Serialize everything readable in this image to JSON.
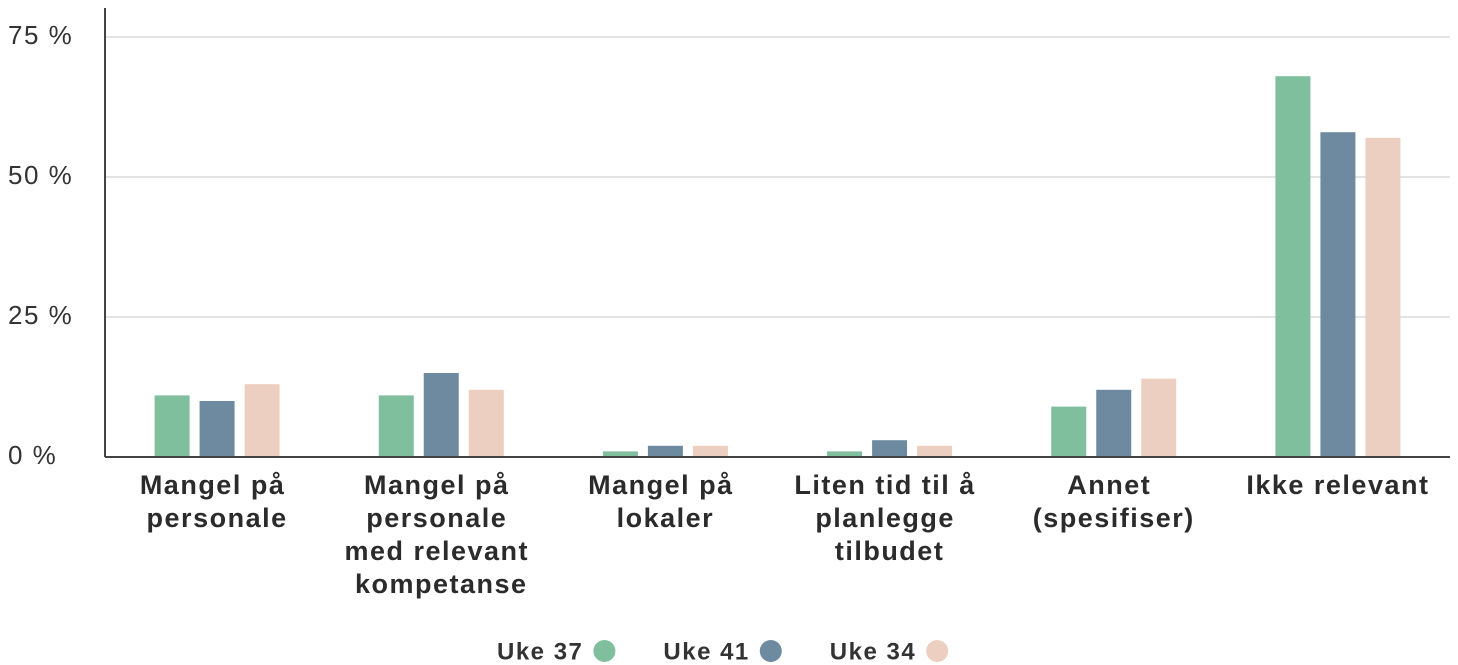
{
  "chart_data": {
    "type": "bar",
    "categories": [
      "Mangel på personale",
      "Mangel på personale med relevant kompetanse",
      "Mangel på lokaler",
      "Liten tid til å planlegge tilbudet",
      "Annet (spesifiser)",
      "Ikke relevant"
    ],
    "series": [
      {
        "name": "Uke 37",
        "color": "#7fbf9e",
        "values": [
          11,
          11,
          1,
          1,
          9,
          68
        ]
      },
      {
        "name": "Uke 41",
        "color": "#6e8aa0",
        "values": [
          10,
          15,
          2,
          3,
          12,
          58
        ]
      },
      {
        "name": "Uke 34",
        "color": "#eccfc0",
        "values": [
          13,
          12,
          2,
          2,
          14,
          57
        ]
      }
    ],
    "ylim": [
      0,
      80
    ],
    "yticks": [
      {
        "value": 0,
        "label": "0 %"
      },
      {
        "value": 25,
        "label": "25 %"
      },
      {
        "value": 50,
        "label": "50 %"
      },
      {
        "value": 75,
        "label": "75 %"
      }
    ],
    "grid": true
  }
}
